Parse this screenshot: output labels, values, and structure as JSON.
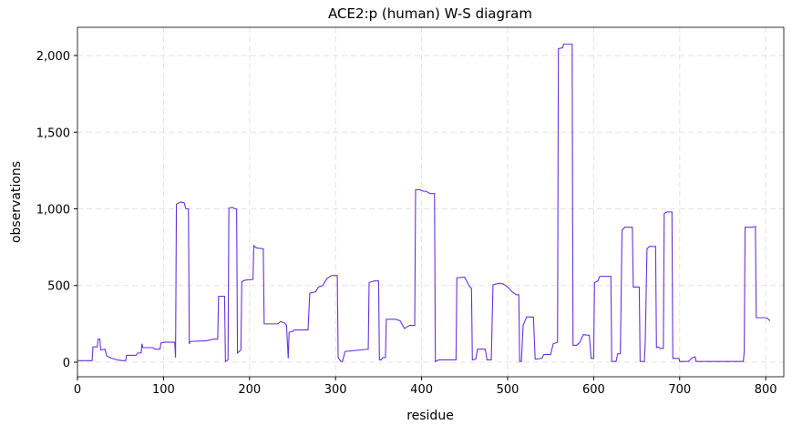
{
  "chart_data": {
    "type": "line",
    "title": "ACE2:p (human) W-S diagram",
    "x_label": "residue",
    "y_label": "observations",
    "color": "#6633dd",
    "grid": true,
    "x": [
      0,
      17,
      18,
      23,
      24,
      26,
      27,
      32,
      34,
      40,
      46,
      52,
      56,
      57,
      68,
      70,
      74,
      75,
      76,
      88,
      90,
      96,
      97,
      101,
      113,
      114,
      115,
      120,
      124,
      126,
      129,
      130,
      131,
      150,
      158,
      163,
      164,
      171,
      172,
      175,
      176,
      180,
      183,
      185,
      186,
      190,
      191,
      195,
      204,
      205,
      208,
      216,
      217,
      233,
      236,
      241,
      243,
      245,
      246,
      250,
      252,
      268,
      270,
      277,
      280,
      285,
      290,
      295,
      302,
      303,
      306,
      308,
      311,
      330,
      338,
      339,
      345,
      350,
      351,
      353,
      355,
      358,
      359,
      370,
      375,
      380,
      386,
      392,
      393,
      398,
      402,
      405,
      410,
      415,
      416,
      420,
      440,
      441,
      450,
      455,
      458,
      459,
      463,
      465,
      474,
      476,
      481,
      483,
      490,
      495,
      500,
      505,
      510,
      513,
      514,
      516,
      518,
      521,
      522,
      530,
      532,
      540,
      542,
      550,
      553,
      558,
      559,
      564,
      565,
      575,
      576,
      580,
      584,
      588,
      595,
      597,
      600,
      601,
      605,
      607,
      620,
      621,
      626,
      628,
      631,
      633,
      636,
      645,
      646,
      653,
      654,
      659,
      660,
      662,
      665,
      672,
      673,
      675,
      677,
      681,
      682,
      685,
      691,
      692,
      699,
      700,
      710,
      715,
      718,
      719,
      774,
      775,
      776,
      785,
      788,
      789,
      800,
      802,
      805
    ],
    "values": [
      10,
      10,
      100,
      100,
      150,
      150,
      80,
      85,
      40,
      25,
      15,
      10,
      10,
      45,
      45,
      60,
      60,
      120,
      95,
      95,
      85,
      85,
      125,
      130,
      130,
      30,
      1030,
      1045,
      1040,
      1000,
      1000,
      120,
      135,
      140,
      150,
      150,
      430,
      430,
      5,
      15,
      1005,
      1010,
      1000,
      1000,
      60,
      80,
      525,
      535,
      540,
      760,
      745,
      740,
      250,
      250,
      265,
      255,
      240,
      25,
      195,
      200,
      210,
      210,
      450,
      460,
      490,
      500,
      545,
      565,
      565,
      30,
      5,
      5,
      70,
      80,
      85,
      520,
      530,
      530,
      15,
      15,
      30,
      30,
      280,
      280,
      270,
      220,
      240,
      240,
      1125,
      1125,
      1115,
      1115,
      1100,
      1100,
      5,
      15,
      15,
      550,
      555,
      500,
      480,
      15,
      20,
      85,
      85,
      15,
      15,
      505,
      515,
      510,
      490,
      460,
      440,
      440,
      5,
      5,
      240,
      280,
      295,
      295,
      20,
      25,
      50,
      50,
      120,
      130,
      2045,
      2050,
      2075,
      2075,
      110,
      110,
      130,
      180,
      175,
      25,
      25,
      520,
      530,
      560,
      560,
      5,
      5,
      55,
      55,
      860,
      880,
      880,
      490,
      490,
      5,
      5,
      140,
      740,
      755,
      755,
      95,
      100,
      90,
      90,
      970,
      980,
      980,
      25,
      25,
      5,
      5,
      30,
      35,
      5,
      5,
      70,
      880,
      880,
      885,
      290,
      290,
      285,
      270
    ],
    "xlim": [
      0,
      821
    ],
    "ylim": [
      -95,
      2184
    ],
    "xticks": [
      0,
      100,
      200,
      300,
      400,
      500,
      600,
      700,
      800
    ],
    "yticks": [
      0,
      500,
      {
        "value": 1000,
        "label": "1,000"
      },
      {
        "value": 1500,
        "label": "1,500"
      },
      {
        "value": 2000,
        "label": "2,000"
      }
    ]
  }
}
